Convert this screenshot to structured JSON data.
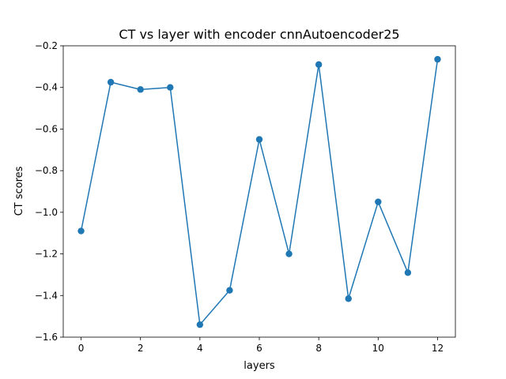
{
  "chart_data": {
    "type": "line",
    "title": "CT vs layer with encoder cnnAutoencoder25",
    "xlabel": "layers",
    "ylabel": "CT scores",
    "xlim": [
      -0.6,
      12.6
    ],
    "ylim": [
      -1.6,
      -0.2
    ],
    "xticks": [
      0,
      2,
      4,
      6,
      8,
      10,
      12
    ],
    "yticks": [
      -1.6,
      -1.4,
      -1.2,
      -1.0,
      -0.8,
      -0.6,
      -0.4,
      -0.2
    ],
    "ytick_labels": [
      "−1.6",
      "−1.4",
      "−1.2",
      "−1.0",
      "−0.8",
      "−0.6",
      "−0.4",
      "−0.2"
    ],
    "grid": false,
    "series": [
      {
        "color": "#1f77b4",
        "marker": "circle",
        "x": [
          0,
          1,
          2,
          3,
          4,
          5,
          6,
          7,
          8,
          9,
          10,
          11,
          12
        ],
        "y": [
          -1.09,
          -0.375,
          -0.41,
          -0.4,
          -1.54,
          -1.375,
          -0.65,
          -1.2,
          -0.29,
          -1.415,
          -0.95,
          -1.29,
          -0.265
        ]
      }
    ]
  }
}
